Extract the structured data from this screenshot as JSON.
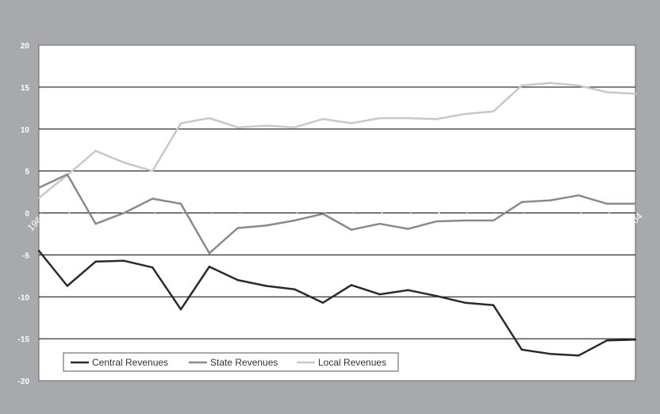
{
  "chart_data": {
    "type": "line",
    "categories": [
      "1960",
      "1965",
      "1970",
      "1975",
      "1980",
      "1988",
      "1989",
      "1990",
      "1991",
      "1992",
      "1993",
      "1994",
      "1995",
      "1996",
      "1997",
      "1998",
      "1999",
      "2000",
      "2001",
      "2002",
      "2003",
      "2004"
    ],
    "series": [
      {
        "name": "Central Revenues",
        "color": "#2b2b2b",
        "values": [
          -4.5,
          -8.7,
          -5.8,
          -5.7,
          -6.5,
          -11.5,
          -6.4,
          -8.0,
          -8.7,
          -9.1,
          -10.7,
          -8.6,
          -9.7,
          -9.2,
          -9.9,
          -10.7,
          -11.0,
          -16.3,
          -16.8,
          -17.0,
          -15.2,
          -15.1
        ]
      },
      {
        "name": "State Revenues",
        "color": "#8a8a8a",
        "values": [
          3.0,
          4.6,
          -1.3,
          0.0,
          1.7,
          1.1,
          -4.8,
          -1.8,
          -1.5,
          -0.9,
          -0.1,
          -2.0,
          -1.3,
          -1.9,
          -1.0,
          -0.9,
          -0.9,
          1.3,
          1.5,
          2.1,
          1.1,
          1.1
        ]
      },
      {
        "name": "Local Revenues",
        "color": "#c8c8c8",
        "values": [
          1.8,
          4.5,
          7.4,
          6.0,
          5.0,
          10.7,
          11.3,
          10.2,
          10.4,
          10.2,
          11.2,
          10.7,
          11.3,
          11.3,
          11.2,
          11.8,
          12.1,
          15.2,
          15.5,
          15.2,
          14.4,
          14.2
        ]
      }
    ],
    "ylim": [
      -20,
      20
    ],
    "yticks": [
      "20",
      "15",
      "10",
      "5",
      "0",
      "-5",
      "-10",
      "-15",
      "-20"
    ],
    "grid": true,
    "legend_position": "bottom-left"
  }
}
